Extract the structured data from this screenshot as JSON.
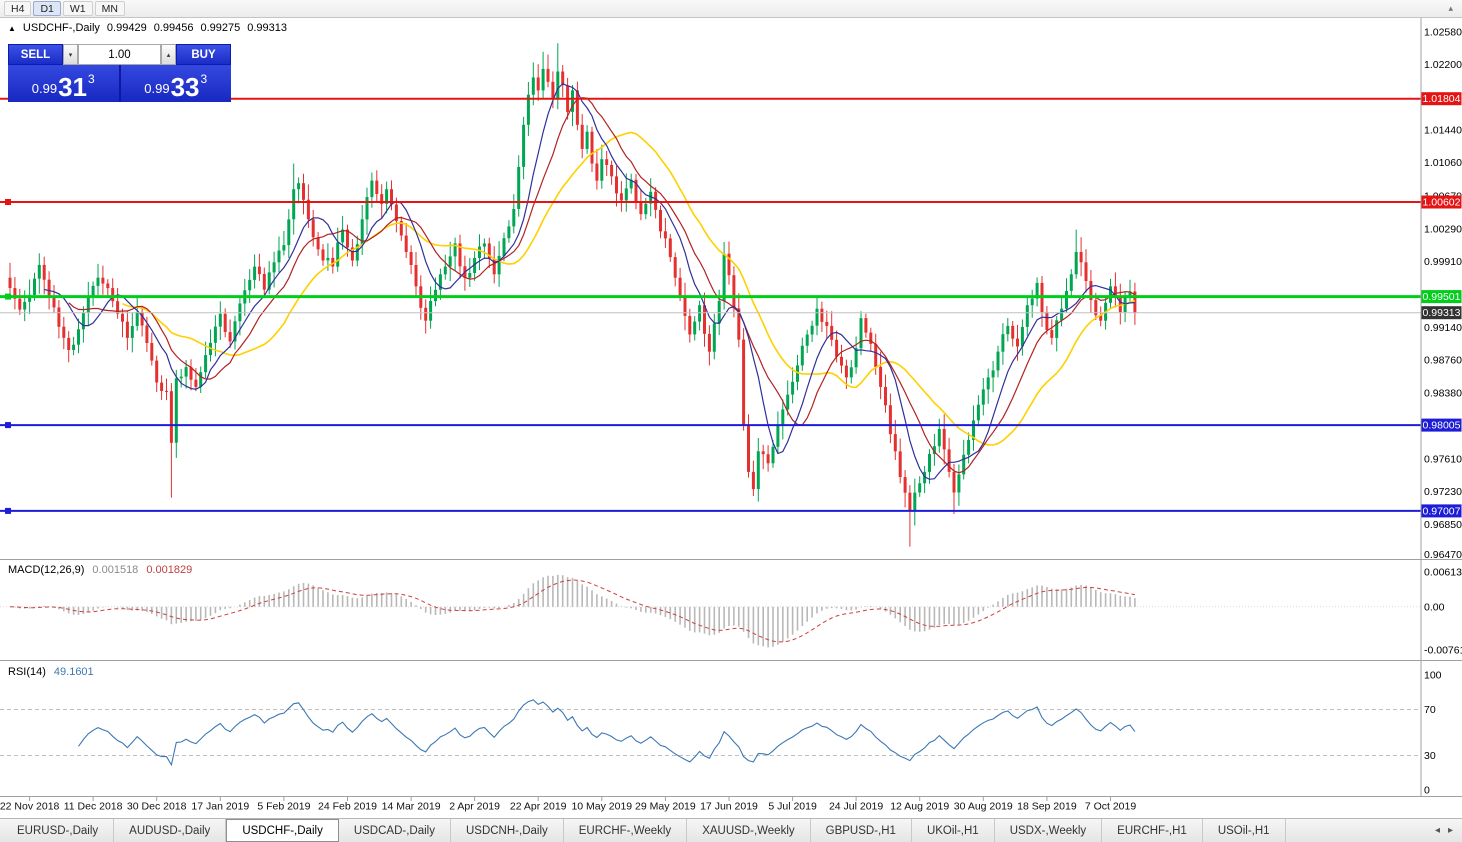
{
  "toolbar": {
    "timeframes": [
      "H4",
      "D1",
      "W1",
      "MN"
    ],
    "active_timeframe": "D1",
    "collapse_icon": "▴"
  },
  "chart_header": {
    "marker": "▲",
    "symbol": "USDCHF-,Daily",
    "ohlc": [
      "0.99429",
      "0.99456",
      "0.99275",
      "0.99313"
    ]
  },
  "trade_panel": {
    "sell_label": "SELL",
    "buy_label": "BUY",
    "volume": "1.00",
    "spin_up_icon": "▴",
    "spin_down_icon": "▾",
    "sell_price": {
      "prefix": "0.99",
      "big": "31",
      "sup": "3"
    },
    "buy_price": {
      "prefix": "0.99",
      "big": "33",
      "sup": "3"
    }
  },
  "tabs": {
    "items": [
      "EURUSD-,Daily",
      "AUDUSD-,Daily",
      "USDCHF-,Daily",
      "USDCAD-,Daily",
      "USDCNH-,Daily",
      "EURCHF-,Weekly",
      "XAUUSD-,Weekly",
      "GBPUSD-,H1",
      "UKOil-,H1",
      "USDX-,Weekly",
      "EURCHF-,H1",
      "USOil-,H1"
    ],
    "active_index": 2,
    "nav_left_icon": "◂",
    "nav_right_icon": "▸"
  },
  "chart_data": {
    "type": "candlestick",
    "symbol": "USDCHF",
    "timeframe": "Daily",
    "colors": {
      "up": "#00a651",
      "down": "#e53030",
      "ma_fast": "#30309a",
      "ma_mid": "#b22222",
      "ma_slow": "#ffd000",
      "separator": "#a0a0a0",
      "current_line": "#c0c0c0",
      "current_badge": "#333333",
      "macd_hist": "#b8b8b8",
      "macd_signal": "#cc4040",
      "rsi_line": "#3c78b4",
      "rsi_levels": "#c0c0c0"
    },
    "price_axis": {
      "max": 1.0258,
      "min": 0.9647,
      "ticks": [
        "1.02580",
        "1.02200",
        "1.01440",
        "1.01060",
        "1.00670",
        "1.00290",
        "0.99910",
        "0.99140",
        "0.98760",
        "0.98380",
        "0.97610",
        "0.97230",
        "0.96850",
        "0.96470"
      ]
    },
    "hlines": [
      {
        "price": 1.01804,
        "label": "1.01804",
        "color": "#e41414",
        "width": 2,
        "left_marker": false
      },
      {
        "price": 1.00602,
        "label": "1.00602",
        "color": "#e41414",
        "width": 2,
        "left_marker": true
      },
      {
        "price": 0.99501,
        "label": "0.99501",
        "color": "#00ce1b",
        "width": 3,
        "left_marker": true
      },
      {
        "price": 0.98005,
        "label": "0.98005",
        "color": "#1d1dd8",
        "width": 2,
        "left_marker": true
      },
      {
        "price": 0.97007,
        "label": "0.97007",
        "color": "#1d1dd8",
        "width": 2,
        "left_marker": true
      }
    ],
    "current_price": {
      "value": 0.99313,
      "label": "0.99313"
    },
    "candles": {
      "count": 231,
      "waypoints": [
        [
          0,
          0.996
        ],
        [
          2,
          0.9935
        ],
        [
          4,
          0.9952
        ],
        [
          6,
          0.9987
        ],
        [
          8,
          0.995
        ],
        [
          10,
          0.9915
        ],
        [
          12,
          0.9888
        ],
        [
          14,
          0.9912
        ],
        [
          16,
          0.995
        ],
        [
          18,
          0.9972
        ],
        [
          20,
          0.996
        ],
        [
          22,
          0.993
        ],
        [
          24,
          0.9902
        ],
        [
          26,
          0.9932
        ],
        [
          28,
          0.9896
        ],
        [
          30,
          0.985
        ],
        [
          32,
          0.984
        ],
        [
          33,
          0.978
        ],
        [
          34,
          0.9855
        ],
        [
          36,
          0.9868
        ],
        [
          38,
          0.9845
        ],
        [
          40,
          0.9882
        ],
        [
          43,
          0.993
        ],
        [
          45,
          0.9898
        ],
        [
          47,
          0.9942
        ],
        [
          50,
          0.9985
        ],
        [
          52,
          0.9958
        ],
        [
          54,
          0.999
        ],
        [
          56,
          1.001
        ],
        [
          58,
          1.0075
        ],
        [
          59,
          1.0082
        ],
        [
          61,
          1.004
        ],
        [
          63,
          1.0005
        ],
        [
          66,
          0.9985
        ],
        [
          68,
          1.0028
        ],
        [
          70,
          0.9992
        ],
        [
          72,
          1.004
        ],
        [
          74,
          1.0085
        ],
        [
          76,
          1.0058
        ],
        [
          77,
          1.0075
        ],
        [
          79,
          1.0038
        ],
        [
          81,
          1.0002
        ],
        [
          83,
          0.9962
        ],
        [
          85,
          0.9922
        ],
        [
          87,
          0.9958
        ],
        [
          89,
          0.9985
        ],
        [
          91,
          1.0012
        ],
        [
          93,
          0.9972
        ],
        [
          95,
          0.9995
        ],
        [
          97,
          1.0012
        ],
        [
          99,
          0.9976
        ],
        [
          101,
          1.0018
        ],
        [
          103,
          1.0052
        ],
        [
          105,
          1.015
        ],
        [
          106,
          1.0185
        ],
        [
          107,
          1.0205
        ],
        [
          108,
          1.019
        ],
        [
          109,
          1.0215
        ],
        [
          110,
          1.02
        ],
        [
          111,
          1.018
        ],
        [
          112,
          1.0212
        ],
        [
          113,
          1.0196
        ],
        [
          114,
          1.0165
        ],
        [
          115,
          1.019
        ],
        [
          116,
          1.015
        ],
        [
          117,
          1.0122
        ],
        [
          118,
          1.0142
        ],
        [
          119,
          1.0105
        ],
        [
          120,
          1.0085
        ],
        [
          121,
          1.011
        ],
        [
          123,
          1.009
        ],
        [
          125,
          1.0062
        ],
        [
          127,
          1.0086
        ],
        [
          129,
          1.0046
        ],
        [
          131,
          1.0072
        ],
        [
          133,
          1.0026
        ],
        [
          135,
          0.9996
        ],
        [
          137,
          0.995
        ],
        [
          139,
          0.9906
        ],
        [
          141,
          0.994
        ],
        [
          143,
          0.9886
        ],
        [
          145,
          0.9945
        ],
        [
          146,
          1.0
        ],
        [
          147,
          0.9975
        ],
        [
          149,
          0.99
        ],
        [
          150,
          0.98
        ],
        [
          151,
          0.9746
        ],
        [
          152,
          0.9726
        ],
        [
          153,
          0.977
        ],
        [
          155,
          0.9756
        ],
        [
          157,
          0.98
        ],
        [
          159,
          0.9836
        ],
        [
          161,
          0.987
        ],
        [
          163,
          0.9906
        ],
        [
          165,
          0.9936
        ],
        [
          167,
          0.9916
        ],
        [
          169,
          0.988
        ],
        [
          171,
          0.9856
        ],
        [
          173,
          0.989
        ],
        [
          174,
          0.9925
        ],
        [
          176,
          0.9895
        ],
        [
          178,
          0.9845
        ],
        [
          180,
          0.979
        ],
        [
          182,
          0.974
        ],
        [
          184,
          0.97
        ],
        [
          185,
          0.9722
        ],
        [
          187,
          0.9746
        ],
        [
          189,
          0.9776
        ],
        [
          190,
          0.9796
        ],
        [
          192,
          0.9746
        ],
        [
          193,
          0.9722
        ],
        [
          195,
          0.9766
        ],
        [
          197,
          0.9806
        ],
        [
          199,
          0.9842
        ],
        [
          200,
          0.9856
        ],
        [
          202,
          0.9886
        ],
        [
          204,
          0.9916
        ],
        [
          206,
          0.9892
        ],
        [
          208,
          0.994
        ],
        [
          210,
          0.9966
        ],
        [
          211,
          0.9932
        ],
        [
          213,
          0.9902
        ],
        [
          215,
          0.9936
        ],
        [
          217,
          0.9976
        ],
        [
          218,
          1.0002
        ],
        [
          219,
          0.999
        ],
        [
          221,
          0.9946
        ],
        [
          223,
          0.9922
        ],
        [
          225,
          0.9962
        ],
        [
          227,
          0.9932
        ],
        [
          229,
          0.9956
        ],
        [
          230,
          0.99313
        ]
      ],
      "spikes": [
        {
          "i": 33,
          "low": 0.9716
        },
        {
          "i": 58,
          "high": 1.0105
        },
        {
          "i": 109,
          "high": 1.0235
        },
        {
          "i": 112,
          "high": 1.0245
        },
        {
          "i": 152,
          "low": 0.9718
        },
        {
          "i": 184,
          "low": 0.9659
        },
        {
          "i": 193,
          "low": 0.9697
        },
        {
          "i": 218,
          "high": 1.0028
        }
      ]
    },
    "moving_averages": [
      {
        "period": 24,
        "color_key": "ma_slow",
        "width": 1.6
      },
      {
        "period": 13,
        "color_key": "ma_mid",
        "width": 1.2
      },
      {
        "period": 8,
        "color_key": "ma_fast",
        "width": 1.2
      }
    ],
    "macd": {
      "label": "MACD(12,26,9)",
      "value_main": "0.001518",
      "value_signal": "0.001829",
      "fast": 12,
      "slow": 26,
      "signal": 9,
      "axis_max": 0.00613,
      "axis_min": -0.00761,
      "axis_labels": [
        "0.00613",
        "0.00",
        "-0.00761"
      ]
    },
    "rsi": {
      "label": "RSI(14)",
      "value": "49.1601",
      "period": 14,
      "levels": [
        70,
        30
      ],
      "axis_labels": [
        "100",
        "70",
        "30",
        "0"
      ]
    },
    "date_axis": {
      "labels": [
        "22 Nov 2018",
        "11 Dec 2018",
        "30 Dec 2018",
        "17 Jan 2019",
        "5 Feb 2019",
        "24 Feb 2019",
        "14 Mar 2019",
        "2 Apr 2019",
        "22 Apr 2019",
        "10 May 2019",
        "29 May 2019",
        "17 Jun 2019",
        "5 Jul 2019",
        "24 Jul 2019",
        "12 Aug 2019",
        "30 Aug 2019",
        "18 Sep 2019",
        "7 Oct 2019"
      ],
      "first_index": 4,
      "index_step": 13
    },
    "generation": {
      "seed": 11,
      "close_noise": 0.0007,
      "wick_base": 0.0005,
      "wick_var": 0.0013
    }
  }
}
